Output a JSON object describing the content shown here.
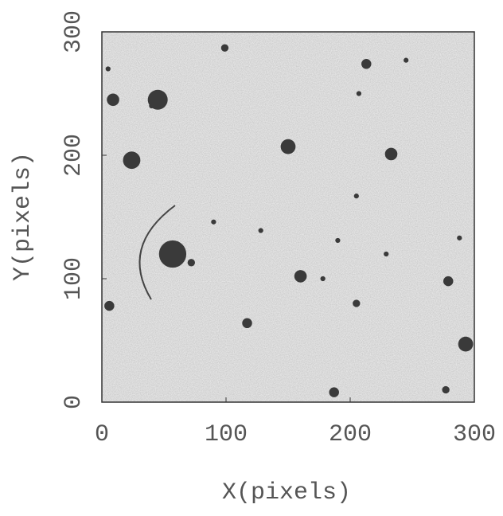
{
  "chart_data": {
    "type": "scatter",
    "xlabel": "X(pixels)",
    "ylabel": "Y(pixels)",
    "xlim": [
      0,
      300
    ],
    "ylim": [
      0,
      300
    ],
    "xticks": [
      0,
      100,
      200,
      300
    ],
    "yticks": [
      0,
      100,
      200,
      300
    ],
    "color": "#3a3a3a",
    "x": [
      24,
      45,
      9,
      57,
      150,
      233,
      213,
      160,
      293,
      279,
      6,
      117,
      187,
      277,
      205,
      72,
      99,
      5,
      205,
      190,
      40,
      128,
      178,
      229,
      288,
      245,
      90,
      207
    ],
    "values": [
      196,
      245,
      245,
      120,
      207,
      201,
      274,
      102,
      47,
      98,
      78,
      64,
      8,
      10,
      80,
      113,
      287,
      270,
      167,
      131,
      240,
      139,
      100,
      120,
      133,
      277,
      146,
      250
    ],
    "sizes": [
      7,
      8,
      5,
      11,
      6,
      5,
      4,
      5,
      6,
      4,
      4,
      4,
      4,
      3,
      3,
      3,
      3,
      2,
      2,
      2,
      2,
      2,
      2,
      2,
      2,
      2,
      2,
      2
    ]
  }
}
